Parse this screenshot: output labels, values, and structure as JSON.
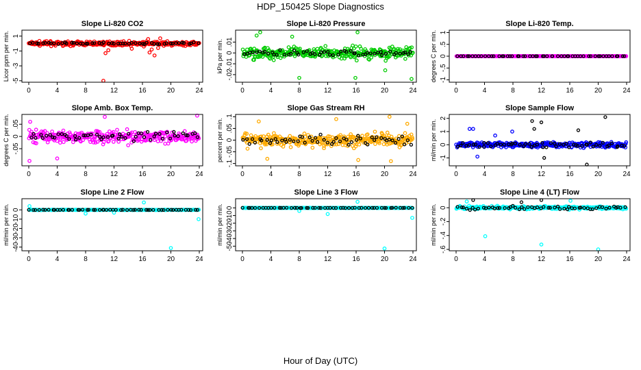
{
  "figure": {
    "title": "HDP_150425  Slope Diagnostics",
    "xlabel": "Hour of Day (UTC)"
  },
  "colors": {
    "axis": "#000000",
    "background": "#ffffff"
  },
  "chart_data": [
    {
      "id": "co2",
      "type": "scatter",
      "title": "Slope Li-820 CO2",
      "ylabel": "Licor ppm per min.",
      "xlim": [
        0,
        24
      ],
      "x_ticks": [
        0,
        4,
        8,
        12,
        16,
        20,
        24
      ],
      "ylim": [
        -5.2,
        1.8
      ],
      "y_ticks": [
        1,
        -1,
        -3,
        -5
      ],
      "series": [
        {
          "name": "all",
          "color": "#ff0000",
          "base": 0,
          "spread": 0.45,
          "points": [
            [
              10.5,
              -5.0
            ],
            [
              10.8,
              -1.3
            ],
            [
              11.2,
              -0.9
            ],
            [
              14.5,
              -0.7
            ],
            [
              16.2,
              -0.4
            ],
            [
              16.8,
              0.6
            ],
            [
              17.3,
              -0.8
            ],
            [
              17.7,
              -1.6
            ],
            [
              18.2,
              -0.6
            ],
            [
              18.5,
              0.7
            ],
            [
              19.0,
              -0.3
            ],
            [
              17.0,
              -1.2
            ]
          ]
        },
        {
          "name": "hourly",
          "color": "#000000",
          "base": 0,
          "spread": 0.25,
          "points": []
        }
      ]
    },
    {
      "id": "pressure",
      "type": "scatter",
      "title": "Slope Li-820 Pressure",
      "ylabel": "kPa per min.",
      "xlim": [
        0,
        24
      ],
      "x_ticks": [
        0,
        4,
        8,
        12,
        16,
        20,
        24
      ],
      "ylim": [
        -0.027,
        0.021
      ],
      "y_ticks": [
        0.01,
        0.0,
        -0.01,
        -0.02
      ],
      "series": [
        {
          "name": "all",
          "color": "#00cc00",
          "base": 0,
          "spread": 0.009,
          "points": [
            [
              2.5,
              0.019
            ],
            [
              2.0,
              0.016
            ],
            [
              7.0,
              0.015
            ],
            [
              8.0,
              -0.023
            ],
            [
              15.9,
              -0.023
            ],
            [
              16.2,
              0.019
            ],
            [
              23.8,
              -0.024
            ],
            [
              20.1,
              -0.016
            ]
          ]
        },
        {
          "name": "hourly",
          "color": "#000000",
          "base": 0,
          "spread": 0.005,
          "points": []
        }
      ]
    },
    {
      "id": "temp",
      "type": "scatter",
      "title": "Slope Li-820 Temp.",
      "ylabel": "degrees C per min.",
      "xlim": [
        0,
        24
      ],
      "x_ticks": [
        0,
        4,
        8,
        12,
        16,
        20,
        24
      ],
      "ylim": [
        -1.1,
        1.1
      ],
      "y_ticks": [
        1.0,
        0.5,
        0.0,
        -0.5,
        -1.0
      ],
      "series": [
        {
          "name": "all",
          "color": "#ff00ff",
          "base": 0,
          "spread": 0.0,
          "points": []
        },
        {
          "name": "hourly",
          "color": "#000000",
          "base": 0,
          "spread": 0.0,
          "points": []
        }
      ]
    },
    {
      "id": "ambbox",
      "type": "scatter",
      "title": "Slope Amb. Box Temp.",
      "ylabel": "degrees C per min.",
      "xlim": [
        0,
        24
      ],
      "x_ticks": [
        0,
        4,
        8,
        12,
        16,
        20,
        24
      ],
      "ylim": [
        -0.12,
        0.09
      ],
      "y_ticks": [
        0.05,
        0.0,
        -0.05
      ],
      "series": [
        {
          "name": "all",
          "color": "#ff00ff",
          "base": 0,
          "spread": 0.045,
          "points": [
            [
              0.1,
              -0.1
            ],
            [
              0.2,
              0.06
            ],
            [
              10.7,
              0.08
            ],
            [
              4.0,
              -0.09
            ],
            [
              23.7,
              0.085
            ]
          ]
        },
        {
          "name": "hourly",
          "color": "#000000",
          "base": 0,
          "spread": 0.03,
          "points": []
        }
      ]
    },
    {
      "id": "rh",
      "type": "scatter",
      "title": "Slope Gas Stream RH",
      "ylabel": "percent per min.",
      "xlim": [
        0,
        24
      ],
      "x_ticks": [
        0,
        4,
        8,
        12,
        16,
        20,
        24
      ],
      "ylim": [
        -0.11,
        0.11
      ],
      "y_ticks": [
        0.1,
        0.05,
        0.0,
        -0.05,
        -0.1
      ],
      "series": [
        {
          "name": "all",
          "color": "#ffaa00",
          "base": 0,
          "spread": 0.045,
          "points": [
            [
              2.3,
              0.08
            ],
            [
              13.2,
              0.09
            ],
            [
              20.7,
              0.1
            ],
            [
              20.9,
              -0.09
            ],
            [
              23.2,
              0.07
            ],
            [
              16.3,
              -0.085
            ],
            [
              3.5,
              -0.08
            ]
          ]
        },
        {
          "name": "hourly",
          "color": "#000000",
          "base": 0,
          "spread": 0.03,
          "points": []
        }
      ]
    },
    {
      "id": "sample",
      "type": "scatter",
      "title": "Slope Sample Flow",
      "ylabel": "ml/min per min.",
      "xlim": [
        0,
        24
      ],
      "x_ticks": [
        0,
        4,
        8,
        12,
        16,
        20,
        24
      ],
      "ylim": [
        -1.6,
        2.3
      ],
      "y_ticks": [
        2,
        1,
        0,
        -1
      ],
      "series": [
        {
          "name": "all",
          "color": "#0000ff",
          "base": 0,
          "spread": 0.35,
          "points": [
            [
              1.9,
              1.2
            ],
            [
              2.4,
              1.2
            ],
            [
              3.0,
              -0.9
            ],
            [
              7.9,
              1.0
            ],
            [
              5.5,
              0.7
            ]
          ]
        },
        {
          "name": "hourly",
          "color": "#000000",
          "base": 0,
          "spread": 0.35,
          "points": [
            [
              10.7,
              1.8
            ],
            [
              11.0,
              1.2
            ],
            [
              12.0,
              1.7
            ],
            [
              12.4,
              -1.0
            ],
            [
              18.4,
              -1.5
            ],
            [
              21.0,
              2.1
            ],
            [
              17.2,
              1.1
            ]
          ]
        }
      ]
    },
    {
      "id": "line2",
      "type": "scatter",
      "title": "Slope Line 2 Flow",
      "ylabel": "ml/min per min.",
      "xlim": [
        0,
        24
      ],
      "x_ticks": [
        0,
        4,
        8,
        12,
        16,
        20,
        24
      ],
      "ylim": [
        -44,
        12
      ],
      "y_ticks": [
        0,
        -10,
        -20,
        -30,
        -40
      ],
      "series": [
        {
          "name": "all",
          "color": "#00ffff",
          "base": 0,
          "spread": 0.4,
          "points": [
            [
              0.1,
              4.0
            ],
            [
              16.2,
              8.0
            ],
            [
              20.0,
              -41.0
            ],
            [
              23.9,
              -10.0
            ],
            [
              8.0,
              -4.0
            ],
            [
              12.0,
              -3.0
            ]
          ]
        },
        {
          "name": "hourly",
          "color": "#000000",
          "base": 0,
          "spread": 0.3,
          "points": []
        }
      ]
    },
    {
      "id": "line3",
      "type": "scatter",
      "title": "Slope Line 3 Flow",
      "ylabel": "ml/min per min.",
      "xlim": [
        0,
        24
      ],
      "x_ticks": [
        0,
        4,
        8,
        12,
        16,
        20,
        24
      ],
      "ylim": [
        -56,
        12
      ],
      "y_ticks": [
        0,
        -10,
        -20,
        -30,
        -40,
        -50
      ],
      "series": [
        {
          "name": "all",
          "color": "#00ffff",
          "base": 0,
          "spread": 0.4,
          "points": [
            [
              16.2,
              8.0
            ],
            [
              20.0,
              -53.0
            ],
            [
              23.9,
              -13.0
            ],
            [
              12.0,
              -8.0
            ],
            [
              8.0,
              -4.0
            ]
          ]
        },
        {
          "name": "hourly",
          "color": "#000000",
          "base": 0,
          "spread": 0.3,
          "points": []
        }
      ]
    },
    {
      "id": "line4",
      "type": "scatter",
      "title": "Slope Line 4 (LT) Flow",
      "ylabel": "ml/min per min.",
      "xlim": [
        0,
        24
      ],
      "x_ticks": [
        0,
        4,
        8,
        12,
        16,
        20,
        24
      ],
      "ylim": [
        -0.62,
        0.13
      ],
      "y_ticks": [
        0.0,
        -0.2,
        -0.4,
        -0.6
      ],
      "series": [
        {
          "name": "all",
          "color": "#00ffff",
          "base": 0,
          "spread": 0.035,
          "points": [
            [
              4.1,
              -0.41
            ],
            [
              12.0,
              -0.53
            ],
            [
              20.0,
              -0.6
            ],
            [
              1.5,
              0.09
            ],
            [
              16.1,
              0.1
            ]
          ]
        },
        {
          "name": "hourly",
          "color": "#000000",
          "base": 0,
          "spread": 0.04,
          "points": [
            [
              2.4,
              0.11
            ],
            [
              12.0,
              0.11
            ],
            [
              9.2,
              0.08
            ]
          ]
        }
      ]
    }
  ]
}
